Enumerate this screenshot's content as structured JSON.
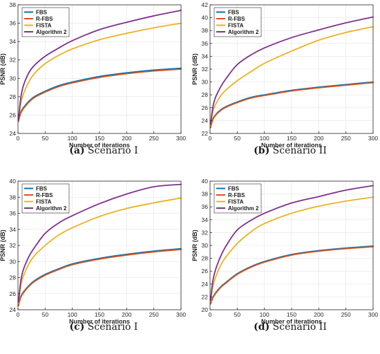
{
  "colors": {
    "FBS": "#0072BD",
    "R-FBS": "#D95319",
    "FISTA": "#EDB120",
    "Algorithm 2": "#7E2F8E"
  },
  "chart_data": [
    {
      "type": "line",
      "panel": "a",
      "caption_letter": "(a)",
      "caption_text": "Scenario I",
      "xlabel": "Number of iterations",
      "ylabel": "PSNR (dB)",
      "xlim": [
        0,
        300
      ],
      "ylim": [
        24,
        38
      ],
      "xticks": [
        0,
        50,
        100,
        150,
        200,
        250,
        300
      ],
      "yticks": [
        24,
        26,
        28,
        30,
        32,
        34,
        36,
        38
      ],
      "grid": true,
      "legend": "top-left",
      "x": [
        1,
        5,
        10,
        20,
        30,
        50,
        75,
        100,
        150,
        200,
        250,
        300
      ],
      "series": [
        {
          "name": "FBS",
          "values": [
            25.4,
            26.3,
            26.8,
            27.5,
            28.0,
            28.6,
            29.2,
            29.6,
            30.2,
            30.6,
            30.9,
            31.1
          ]
        },
        {
          "name": "R-FBS",
          "values": [
            25.3,
            26.2,
            26.7,
            27.4,
            27.9,
            28.5,
            29.1,
            29.5,
            30.1,
            30.5,
            30.8,
            31.0
          ]
        },
        {
          "name": "FISTA",
          "values": [
            25.5,
            27.2,
            28.3,
            29.6,
            30.5,
            31.6,
            32.5,
            33.2,
            34.2,
            34.9,
            35.5,
            36.0
          ]
        },
        {
          "name": "Algorithm 2",
          "values": [
            25.5,
            27.8,
            29.2,
            30.6,
            31.4,
            32.4,
            33.3,
            34.1,
            35.3,
            36.1,
            36.8,
            37.4
          ]
        }
      ]
    },
    {
      "type": "line",
      "panel": "b",
      "caption_letter": "(b)",
      "caption_text": "Scenario II",
      "xlabel": "Number of iterations",
      "ylabel": "PSNR (dB)",
      "xlim": [
        0,
        300
      ],
      "ylim": [
        22,
        42
      ],
      "xticks": [
        0,
        50,
        100,
        150,
        200,
        250,
        300
      ],
      "yticks": [
        22,
        24,
        26,
        28,
        30,
        32,
        34,
        36,
        38,
        40,
        42
      ],
      "grid": true,
      "legend": "top-left",
      "x": [
        1,
        5,
        10,
        20,
        30,
        50,
        75,
        100,
        150,
        200,
        250,
        300
      ],
      "series": [
        {
          "name": "FBS",
          "values": [
            23.0,
            24.2,
            24.9,
            25.7,
            26.2,
            26.9,
            27.6,
            28.0,
            28.7,
            29.2,
            29.6,
            30.0
          ]
        },
        {
          "name": "R-FBS",
          "values": [
            22.9,
            24.1,
            24.8,
            25.6,
            26.1,
            26.8,
            27.5,
            27.9,
            28.6,
            29.1,
            29.5,
            29.9
          ]
        },
        {
          "name": "FISTA",
          "values": [
            23.2,
            25.3,
            26.5,
            27.9,
            28.8,
            30.2,
            31.6,
            32.9,
            34.8,
            36.5,
            37.7,
            38.6
          ]
        },
        {
          "name": "Algorithm 2",
          "values": [
            23.4,
            26.0,
            27.6,
            29.3,
            30.6,
            32.7,
            34.2,
            35.3,
            36.9,
            38.1,
            39.2,
            40.1
          ]
        }
      ]
    },
    {
      "type": "line",
      "panel": "c",
      "caption_letter": "(c)",
      "caption_text": "Scenario I",
      "xlabel": "Number of iterations",
      "ylabel": "PSNR (dB)",
      "xlim": [
        0,
        300
      ],
      "ylim": [
        24,
        40
      ],
      "xticks": [
        0,
        50,
        100,
        150,
        200,
        250,
        300
      ],
      "yticks": [
        24,
        26,
        28,
        30,
        32,
        34,
        36,
        38,
        40
      ],
      "grid": true,
      "legend": "top-left",
      "x": [
        1,
        5,
        10,
        20,
        30,
        50,
        75,
        100,
        150,
        200,
        250,
        300
      ],
      "series": [
        {
          "name": "FBS",
          "values": [
            24.6,
            25.6,
            26.2,
            27.0,
            27.6,
            28.4,
            29.1,
            29.7,
            30.4,
            30.9,
            31.3,
            31.6
          ]
        },
        {
          "name": "R-FBS",
          "values": [
            24.5,
            25.5,
            26.1,
            26.9,
            27.5,
            28.3,
            29.0,
            29.6,
            30.3,
            30.8,
            31.2,
            31.5
          ]
        },
        {
          "name": "FISTA",
          "values": [
            24.8,
            26.9,
            28.2,
            29.7,
            30.7,
            32.0,
            33.3,
            34.2,
            35.6,
            36.6,
            37.3,
            37.9
          ]
        },
        {
          "name": "Algorithm 2",
          "values": [
            25.0,
            27.5,
            29.0,
            30.6,
            31.7,
            33.5,
            34.8,
            35.7,
            37.2,
            38.4,
            39.3,
            39.6
          ]
        }
      ]
    },
    {
      "type": "line",
      "panel": "d",
      "caption_letter": "(d)",
      "caption_text": "Scenario II",
      "xlabel": "Number of iterations",
      "ylabel": "PSNR (dB)",
      "xlim": [
        0,
        300
      ],
      "ylim": [
        20,
        40
      ],
      "xticks": [
        0,
        50,
        100,
        150,
        200,
        250,
        300
      ],
      "yticks": [
        20,
        22,
        24,
        26,
        28,
        30,
        32,
        34,
        36,
        38,
        40
      ],
      "grid": true,
      "legend": "top-left",
      "x": [
        1,
        5,
        10,
        20,
        30,
        50,
        75,
        100,
        150,
        200,
        250,
        300
      ],
      "series": [
        {
          "name": "FBS",
          "values": [
            21.0,
            21.9,
            22.6,
            23.6,
            24.3,
            25.6,
            26.7,
            27.5,
            28.6,
            29.2,
            29.6,
            29.9
          ]
        },
        {
          "name": "R-FBS",
          "values": [
            20.9,
            21.8,
            22.5,
            23.5,
            24.2,
            25.5,
            26.6,
            27.4,
            28.5,
            29.1,
            29.5,
            29.8
          ]
        },
        {
          "name": "FISTA",
          "values": [
            21.3,
            23.5,
            25.0,
            27.0,
            28.3,
            30.3,
            32.1,
            33.4,
            35.0,
            36.1,
            36.9,
            37.5
          ]
        },
        {
          "name": "Algorithm 2",
          "values": [
            21.5,
            24.4,
            26.2,
            28.4,
            30.0,
            32.4,
            33.9,
            35.0,
            36.6,
            37.6,
            38.6,
            39.3
          ]
        }
      ]
    }
  ]
}
